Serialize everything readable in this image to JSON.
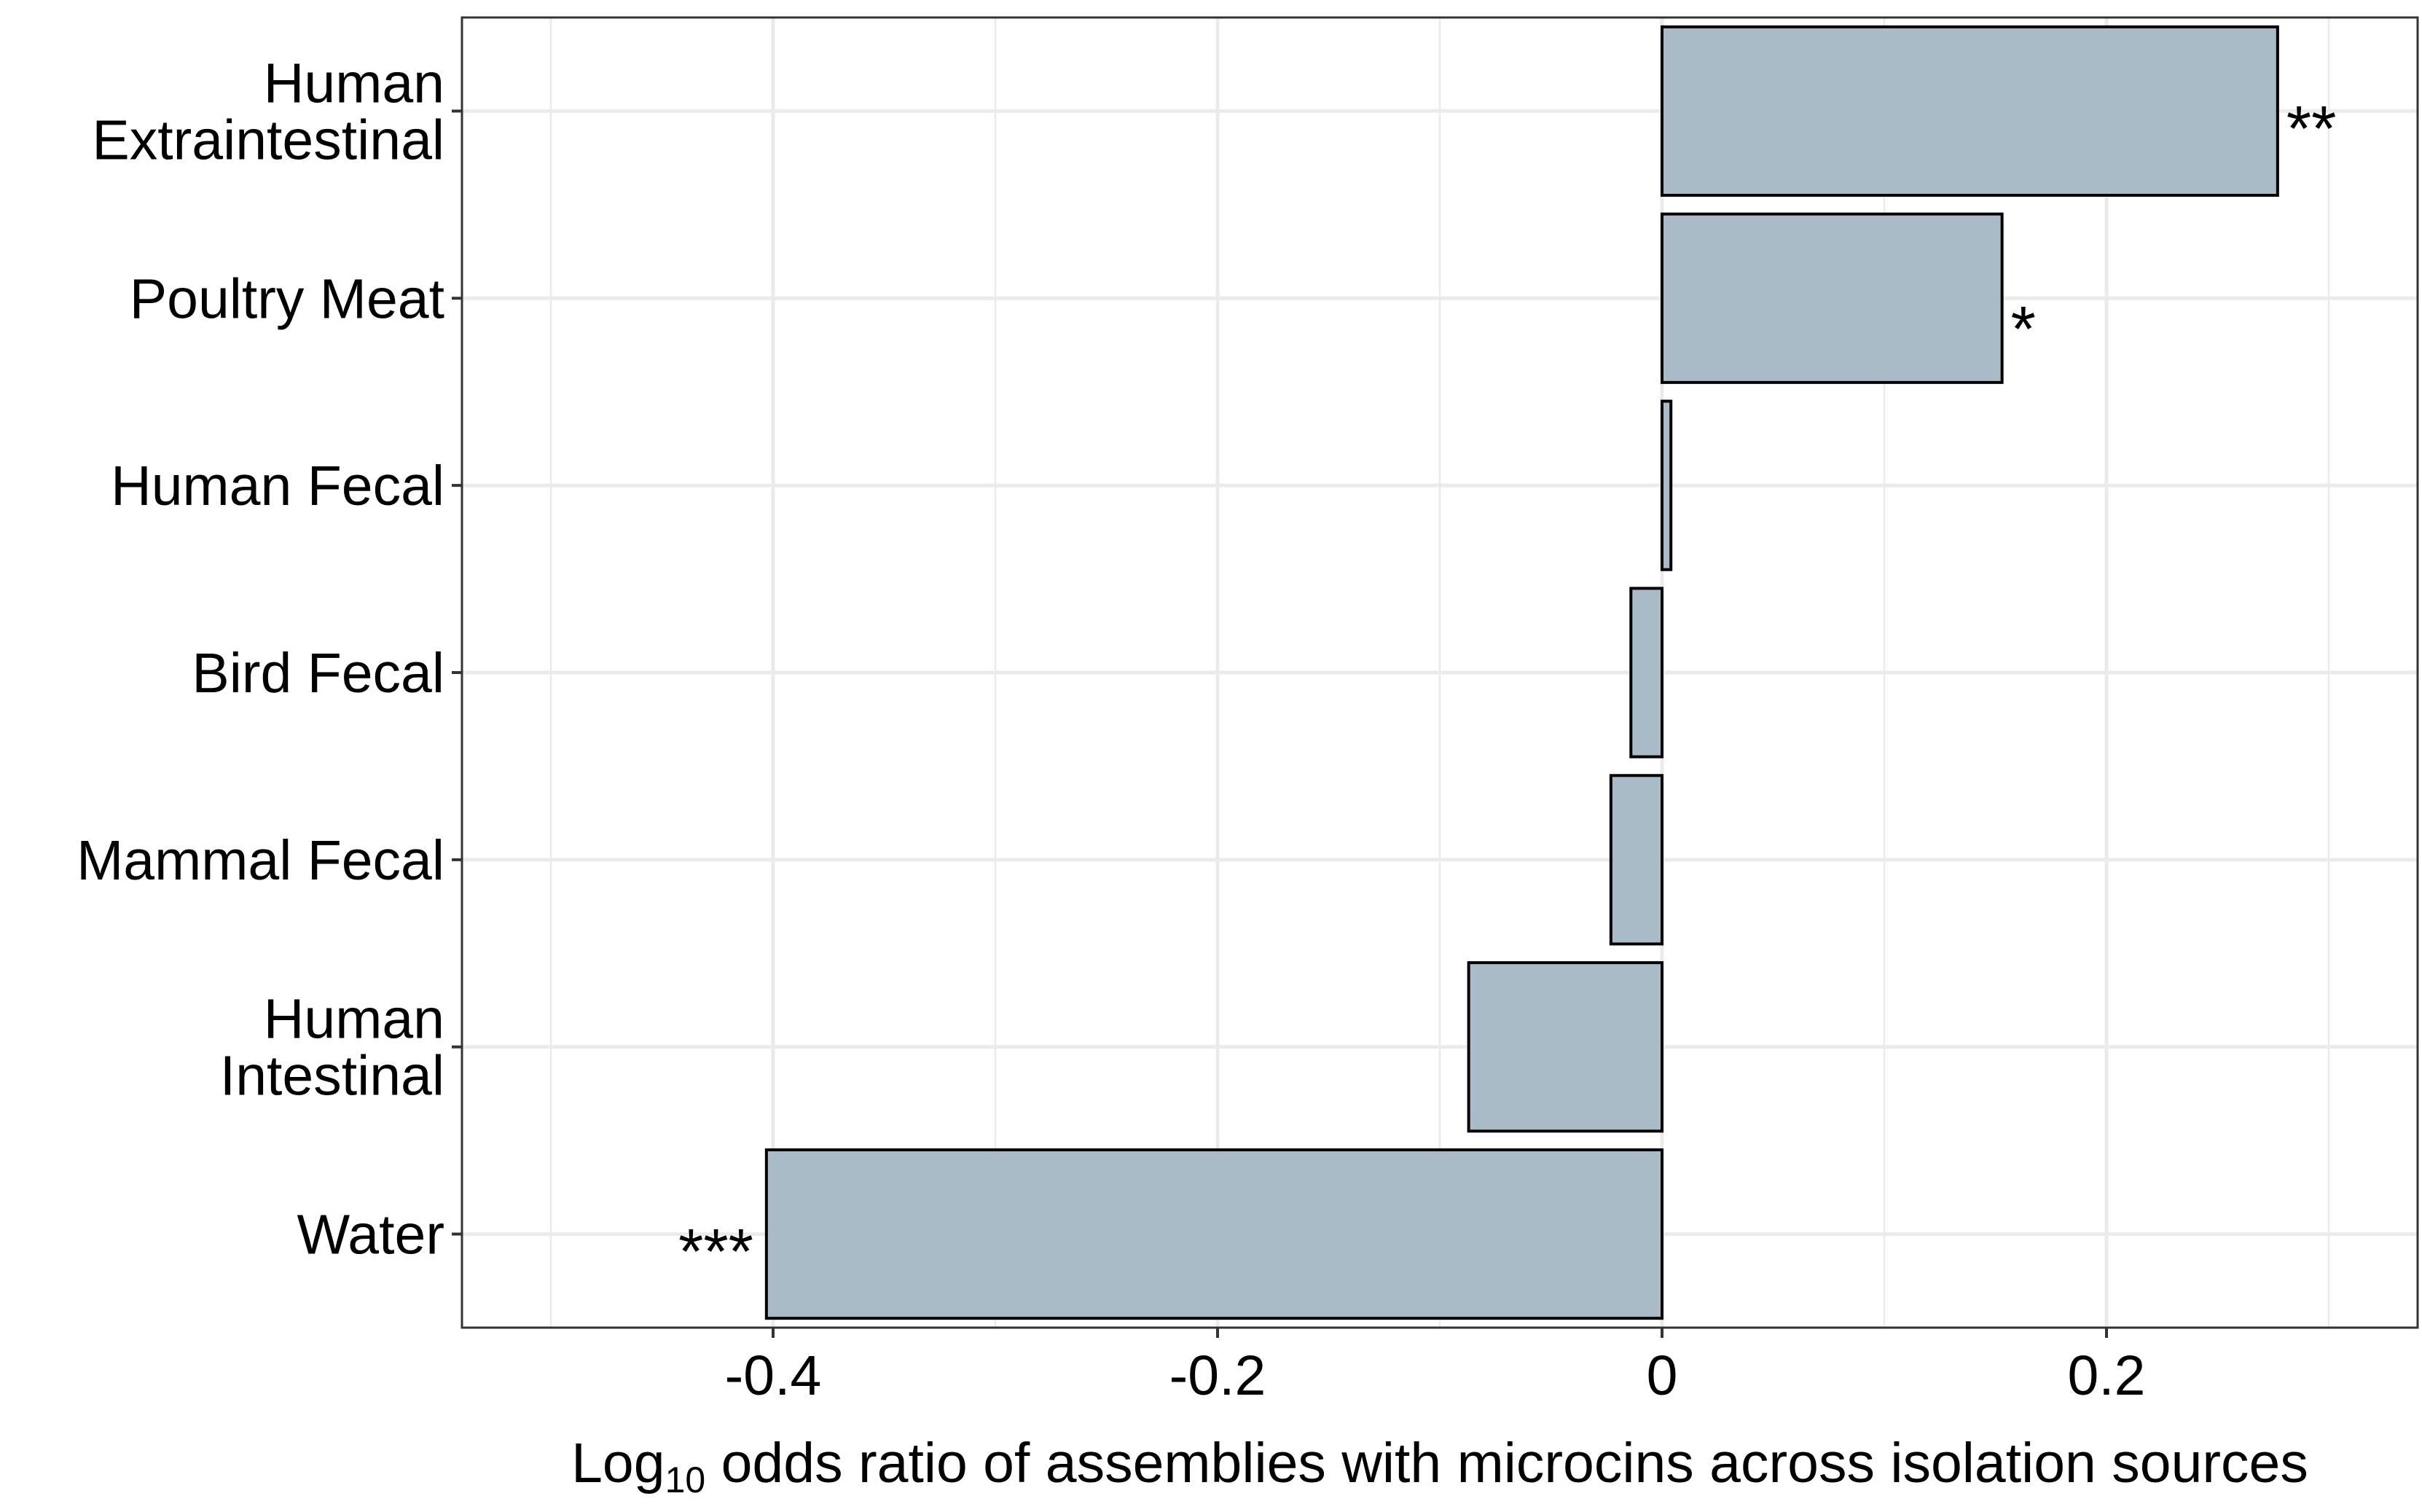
{
  "chart_data": {
    "type": "bar",
    "orientation": "horizontal",
    "categories": [
      "Human Extraintestinal",
      "Poultry Meat",
      "Human Fecal",
      "Bird Fecal",
      "Mammal Fecal",
      "Human Intestinal",
      "Water"
    ],
    "category_lines": [
      [
        "Human",
        "Extraintestinal"
      ],
      [
        "Poultry Meat"
      ],
      [
        "Human Fecal"
      ],
      [
        "Bird Fecal"
      ],
      [
        "Mammal Fecal"
      ],
      [
        "Human",
        "Intestinal"
      ],
      [
        "Water"
      ]
    ],
    "values": [
      0.277,
      0.153,
      0.004,
      -0.014,
      -0.023,
      -0.087,
      -0.403
    ],
    "significance": [
      "**",
      "*",
      "",
      "",
      "",
      "",
      "***"
    ],
    "xlabel_prefix": "Log",
    "xlabel_subscript": "10",
    "xlabel_suffix": " odds ratio of assemblies with microcins across isolation sources",
    "xlim": [
      -0.54,
      0.34
    ],
    "xticks": [
      -0.4,
      -0.2,
      0,
      0.2
    ],
    "xtick_labels": [
      "-0.4",
      "-0.2",
      "0",
      "0.2"
    ],
    "grid": true,
    "bar_color": "#aabbc8",
    "bar_edge_color": "#000000",
    "grid_color": "#ebebeb",
    "panel_border_color": "#333333"
  }
}
